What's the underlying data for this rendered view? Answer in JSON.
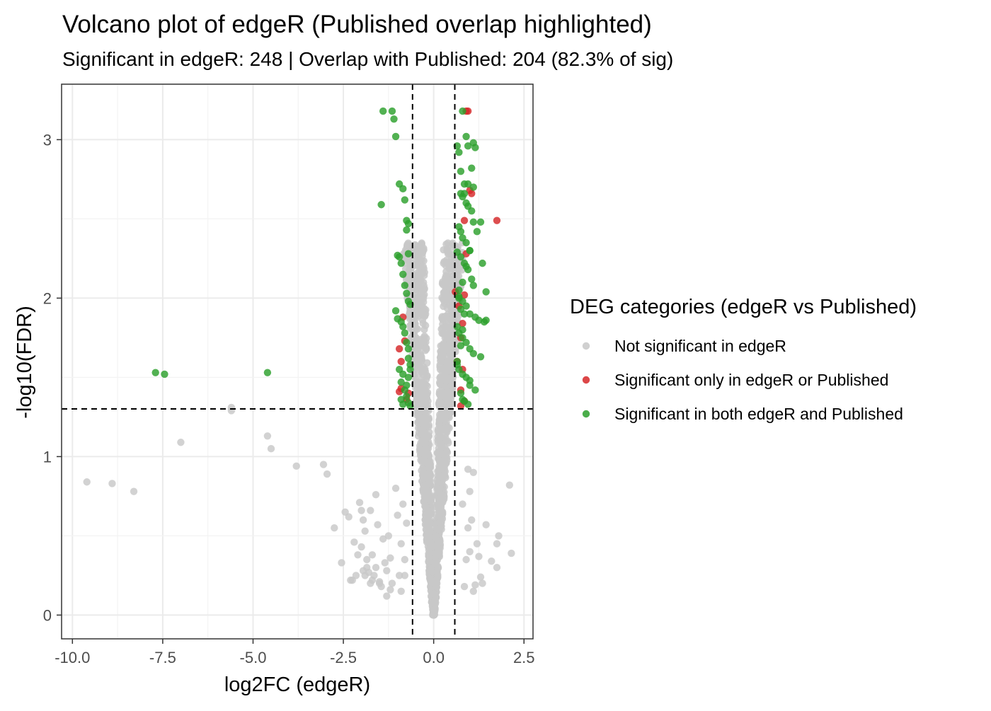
{
  "chart_data": {
    "type": "scatter",
    "title": "Volcano plot of edgeR (Published overlap highlighted)",
    "subtitle": "Significant in edgeR: 248 | Overlap with Published: 204 (82.3% of sig)",
    "xlabel": "log2FC (edgeR)",
    "ylabel": "-log10(FDR)",
    "xlim": [
      -10.3,
      2.75
    ],
    "ylim": [
      -0.15,
      3.35
    ],
    "x_ticks": [
      -10.0,
      -7.5,
      -5.0,
      -2.5,
      0.0,
      2.5
    ],
    "x_tick_labels": [
      "-10.0",
      "-7.5",
      "-5.0",
      "-2.5",
      "0.0",
      "2.5"
    ],
    "y_ticks": [
      0,
      1,
      2,
      3
    ],
    "y_tick_labels": [
      "0",
      "1",
      "2",
      "3"
    ],
    "thresholds": {
      "log2fc": [
        -0.585,
        0.585
      ],
      "neg_log10_fdr": 1.301
    },
    "grid": true,
    "legend": {
      "title": "DEG categories (edgeR vs Published)",
      "placement": "right"
    },
    "series": [
      {
        "name": "Not significant in edgeR",
        "color": "#c8c8c8",
        "x": [
          -9.6,
          -8.9,
          -8.3,
          -7.0,
          -5.6,
          -5.6,
          -4.6,
          -4.5,
          -3.8,
          -3.05,
          -2.95,
          -2.75,
          -2.55,
          -2.45,
          -2.35,
          -2.25,
          -2.15,
          -2.1,
          -2.05,
          -2.0,
          -1.95,
          -1.9,
          -1.85,
          -1.8,
          -1.75,
          -1.7,
          -1.65,
          -1.55,
          -1.5,
          -1.45,
          -1.4,
          -1.35,
          -1.3,
          -1.25,
          -1.2,
          -1.15,
          -2.3,
          -2.2,
          -1.95,
          -1.85,
          -1.75,
          -1.6,
          -2.0,
          -1.9,
          -1.7,
          -1.5,
          -1.3,
          -1.2,
          -0.9,
          -0.85,
          -0.8,
          -0.75,
          -0.9,
          -0.8,
          -1.05,
          -1.0,
          -0.95,
          2.1,
          2.15,
          1.8,
          1.75,
          1.75,
          1.6,
          1.45,
          1.35,
          1.2,
          1.1,
          1.05,
          1.0,
          1.15,
          0.95,
          0.9,
          1.25,
          1.3,
          0.85,
          0.8,
          0.95,
          1.0,
          1.1,
          -1.6
        ],
        "y": [
          0.84,
          0.83,
          0.78,
          1.09,
          1.29,
          1.31,
          1.13,
          1.05,
          0.94,
          0.95,
          0.89,
          0.55,
          0.33,
          0.65,
          0.62,
          0.22,
          0.25,
          0.38,
          0.71,
          0.66,
          0.6,
          0.53,
          0.3,
          0.27,
          0.2,
          0.38,
          0.25,
          0.57,
          0.21,
          0.18,
          0.48,
          0.33,
          0.12,
          0.5,
          0.16,
          0.2,
          0.22,
          0.46,
          0.28,
          0.35,
          0.66,
          0.3,
          0.43,
          0.25,
          0.22,
          0.2,
          0.28,
          0.36,
          0.15,
          0.7,
          0.35,
          0.58,
          0.45,
          0.25,
          0.8,
          0.63,
          0.25,
          0.82,
          0.39,
          0.5,
          0.45,
          0.3,
          0.34,
          0.57,
          0.2,
          0.45,
          0.9,
          0.6,
          0.78,
          0.19,
          0.55,
          0.35,
          0.37,
          0.24,
          0.18,
          0.7,
          0.92,
          0.4,
          0.15,
          0.76
        ]
      },
      {
        "name": "Significant only in edgeR or Published",
        "color": "#d62728",
        "x": [
          0.9,
          0.95,
          1.0,
          1.05,
          1.75,
          0.85,
          0.9,
          0.85,
          -0.95,
          -0.9,
          -0.8,
          -0.95,
          -0.9,
          -0.75,
          -0.7,
          -0.85,
          0.75,
          0.8,
          0.6,
          0.7,
          0.75,
          0.65,
          0.8,
          0.75,
          0.85
        ],
        "y": [
          3.18,
          3.18,
          2.68,
          2.66,
          2.49,
          2.49,
          2.28,
          2.02,
          1.68,
          1.6,
          1.73,
          1.41,
          1.43,
          1.36,
          1.4,
          1.88,
          1.42,
          1.55,
          2.04,
          1.95,
          1.75,
          1.6,
          1.84,
          1.32,
          1.35
        ]
      },
      {
        "name": "Significant in both edgeR and Published",
        "color": "#2ca02c",
        "x": [
          -7.7,
          -7.45,
          -4.6,
          -1.4,
          -1.15,
          -1.1,
          -1.05,
          -1.45,
          -0.95,
          -0.85,
          -0.8,
          -0.75,
          -0.75,
          -0.7,
          -0.7,
          -1.0,
          -0.95,
          -0.9,
          -0.85,
          -0.8,
          -0.75,
          -0.7,
          -0.65,
          -1.05,
          -1.0,
          -0.9,
          -0.85,
          -0.8,
          -0.75,
          -0.7,
          -0.7,
          -0.65,
          -0.95,
          -0.85,
          -0.9,
          -0.8,
          -0.75,
          -0.7,
          -0.65,
          -0.9,
          -0.85,
          -0.75,
          -0.7,
          -0.65,
          0.8,
          0.9,
          0.95,
          0.65,
          0.7,
          0.75,
          0.85,
          0.95,
          1.1,
          1.15,
          1.05,
          1.1,
          0.75,
          0.8,
          0.85,
          0.9,
          0.95,
          1.05,
          1.1,
          0.7,
          0.75,
          0.8,
          0.9,
          1.0,
          1.2,
          1.3,
          0.65,
          0.75,
          0.85,
          0.95,
          1.05,
          1.1,
          1.35,
          1.45,
          0.7,
          0.8,
          0.9,
          1.0,
          1.15,
          1.25,
          1.4,
          1.45,
          0.65,
          0.7,
          0.8,
          0.9,
          1.0,
          1.1,
          1.3,
          0.65,
          0.7,
          0.8,
          0.9,
          1.0,
          1.15,
          0.75,
          0.8,
          0.85,
          0.95,
          1.0,
          0.65,
          0.75,
          0.8,
          0.85,
          0.7,
          0.8,
          0.9,
          1.0,
          0.7,
          0.75
        ],
        "y": [
          1.53,
          1.52,
          1.53,
          3.18,
          3.18,
          3.13,
          3.02,
          2.59,
          2.72,
          2.69,
          2.62,
          2.49,
          2.43,
          2.47,
          2.28,
          2.27,
          2.26,
          2.22,
          2.15,
          2.08,
          2.03,
          1.98,
          1.96,
          1.92,
          1.87,
          1.85,
          1.82,
          1.78,
          1.72,
          1.68,
          1.62,
          1.58,
          1.55,
          1.52,
          1.47,
          1.42,
          1.38,
          1.34,
          1.32,
          1.36,
          1.33,
          1.45,
          1.5,
          1.55,
          3.18,
          3.02,
          2.96,
          2.96,
          2.92,
          2.8,
          2.72,
          2.72,
          2.98,
          2.95,
          2.82,
          2.7,
          2.66,
          2.64,
          2.66,
          2.6,
          2.58,
          2.55,
          2.48,
          2.45,
          2.42,
          2.38,
          2.35,
          2.3,
          2.42,
          2.48,
          2.29,
          2.26,
          2.22,
          2.18,
          2.12,
          2.08,
          2.22,
          2.04,
          2.01,
          1.98,
          1.95,
          1.9,
          1.88,
          1.86,
          1.85,
          1.86,
          1.82,
          1.78,
          1.75,
          1.72,
          1.68,
          1.65,
          1.63,
          1.58,
          1.55,
          1.52,
          1.5,
          1.45,
          1.42,
          1.4,
          1.36,
          1.35,
          1.33,
          1.48,
          1.6,
          1.7,
          1.8,
          1.9,
          2.0,
          2.1,
          2.2,
          2.3,
          2.05,
          1.93
        ]
      }
    ]
  }
}
